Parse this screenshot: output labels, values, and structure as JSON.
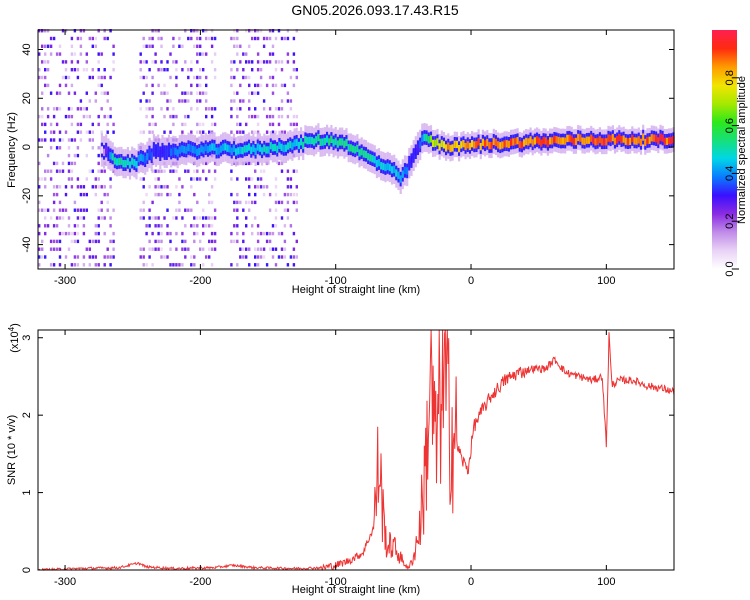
{
  "title": "GN05.2026.093.17.43.R15",
  "chart_data": [
    {
      "type": "heatmap",
      "name": "spectrogram",
      "xlabel": "Height of straight line (km)",
      "ylabel": "Frequency (Hz)",
      "xlim": [
        -320,
        150
      ],
      "ylim": [
        -50,
        48
      ],
      "xticks": [
        -300,
        -200,
        -100,
        0,
        100
      ],
      "yticks": [
        -40,
        -20,
        0,
        20,
        40
      ],
      "colorbar": {
        "label": "Normalized spectral amplitude",
        "range": [
          0,
          1
        ],
        "ticks": [
          0.0,
          0.2,
          0.4,
          0.6,
          0.8
        ],
        "colormap": [
          "#ffffff",
          "#e9d2f6",
          "#c08ce8",
          "#8a2be2",
          "#3a10ff",
          "#0a7cff",
          "#00d6e6",
          "#16e07a",
          "#2ee81a",
          "#a8e800",
          "#f2e400",
          "#ff9a00",
          "#ff2a10",
          "#ff2050"
        ]
      },
      "noise_blocks_x": [
        [
          -320,
          -265
        ],
        [
          -245,
          -190
        ],
        [
          -178,
          -128
        ]
      ],
      "signal_track": {
        "x": [
          -320,
          -275,
          -265,
          -250,
          -235,
          -200,
          -160,
          -130,
          -115,
          -95,
          -80,
          -65,
          -58,
          -52,
          -45,
          -40,
          -35,
          -25,
          -10,
          0,
          40,
          80,
          120,
          150
        ],
        "freq": [
          0,
          0,
          -5,
          -7,
          -2,
          -1,
          -1,
          1,
          3,
          2,
          -3,
          -8,
          -10,
          -13,
          -6,
          0,
          4,
          1,
          0,
          1,
          2,
          3,
          3,
          3
        ],
        "amplitude": [
          0.0,
          0.0,
          0.55,
          0.5,
          0.35,
          0.45,
          0.5,
          0.5,
          0.55,
          0.55,
          0.55,
          0.5,
          0.5,
          0.45,
          0.35,
          0.3,
          0.55,
          0.85,
          0.9,
          0.92,
          0.95,
          0.97,
          0.97,
          0.97
        ]
      }
    },
    {
      "type": "line",
      "name": "snr",
      "xlabel": "Height of straight line (km)",
      "ylabel": "SNR (10 * v/v)",
      "exponent_label": "(x10",
      "exponent_sup": "4",
      "exponent_close": ")",
      "xlim": [
        -320,
        150
      ],
      "ylim": [
        0,
        3.1
      ],
      "xticks": [
        -300,
        -200,
        -100,
        0,
        100
      ],
      "yticks": [
        0,
        1,
        2,
        3
      ],
      "color": "#ee3333",
      "series": [
        {
          "name": "SNR",
          "x": [
            -320,
            -290,
            -260,
            -246,
            -240,
            -220,
            -190,
            -176,
            -160,
            -130,
            -110,
            -100,
            -90,
            -80,
            -72,
            -68,
            -65,
            -62,
            -58,
            -54,
            -50,
            -46,
            -42,
            -38,
            -34,
            -30,
            -26,
            -22,
            -18,
            -14,
            -10,
            -6,
            -2,
            2,
            8,
            15,
            25,
            35,
            45,
            55,
            62,
            70,
            80,
            90,
            97,
            100,
            102,
            104,
            110,
            120,
            130,
            140,
            150
          ],
          "y": [
            0.0,
            0.02,
            0.03,
            0.09,
            0.04,
            0.02,
            0.03,
            0.06,
            0.03,
            0.02,
            0.03,
            0.06,
            0.12,
            0.22,
            0.55,
            1.45,
            0.7,
            0.3,
            0.32,
            0.22,
            0.1,
            0.02,
            0.2,
            0.55,
            1.2,
            2.55,
            1.5,
            2.5,
            2.2,
            1.8,
            1.6,
            1.4,
            1.3,
            1.85,
            2.05,
            2.25,
            2.45,
            2.55,
            2.6,
            2.6,
            2.72,
            2.55,
            2.5,
            2.45,
            2.5,
            1.6,
            3.05,
            2.4,
            2.45,
            2.45,
            2.38,
            2.35,
            2.3
          ]
        }
      ]
    }
  ]
}
